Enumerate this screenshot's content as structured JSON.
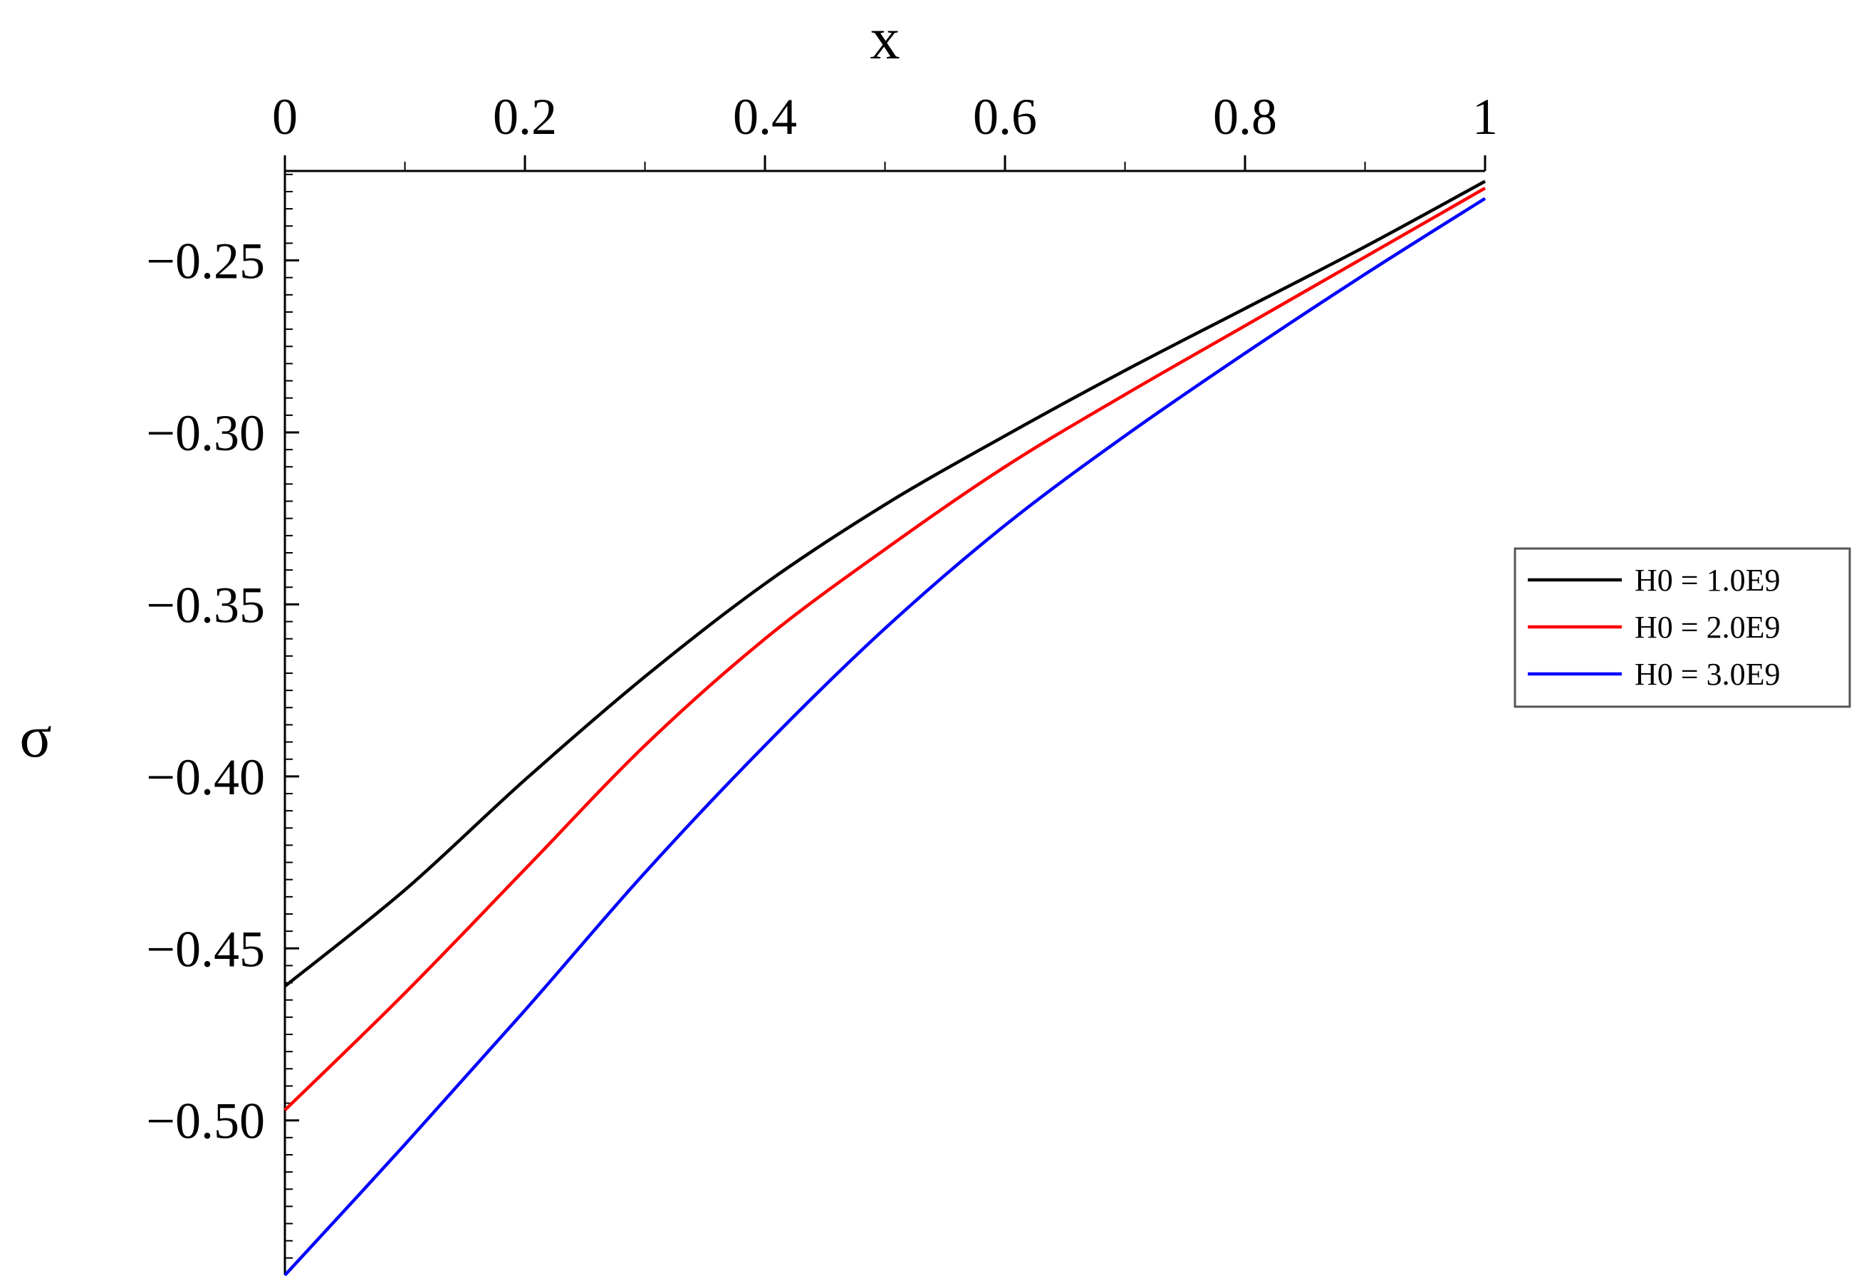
{
  "chart_data": {
    "type": "line",
    "xlabel": "x",
    "ylabel": "σ",
    "xlim": [
      0,
      1
    ],
    "ylim": [
      -0.545,
      -0.224
    ],
    "x_axis_position": "top",
    "xticks": [
      0,
      0.2,
      0.4,
      0.6,
      0.8,
      1
    ],
    "xtick_labels": [
      "0",
      "0.2",
      "0.4",
      "0.6",
      "0.8",
      "1"
    ],
    "yticks": [
      -0.25,
      -0.3,
      -0.35,
      -0.4,
      -0.45,
      -0.5
    ],
    "ytick_labels": [
      "−0.25",
      "−0.30",
      "−0.35",
      "−0.40",
      "−0.45",
      "−0.50"
    ],
    "grid": false,
    "legend_position": "right",
    "x": [
      0,
      0.1,
      0.2,
      0.3,
      0.4,
      0.5,
      0.6,
      0.7,
      0.8,
      0.9,
      1.0
    ],
    "series": [
      {
        "name": "H0 = 1.0E9",
        "color": "#000000",
        "values": [
          -0.461,
          -0.433,
          -0.401,
          -0.371,
          -0.344,
          -0.321,
          -0.301,
          -0.282,
          -0.264,
          -0.246,
          -0.227
        ]
      },
      {
        "name": "H0 = 2.0E9",
        "color": "#ff0000",
        "values": [
          -0.497,
          -0.463,
          -0.427,
          -0.391,
          -0.36,
          -0.334,
          -0.31,
          -0.289,
          -0.269,
          -0.249,
          -0.229
        ]
      },
      {
        "name": "H0 = 3.0E9",
        "color": "#0000ff",
        "values": [
          -0.545,
          -0.507,
          -0.468,
          -0.428,
          -0.391,
          -0.357,
          -0.327,
          -0.301,
          -0.277,
          -0.254,
          -0.232
        ]
      }
    ]
  }
}
